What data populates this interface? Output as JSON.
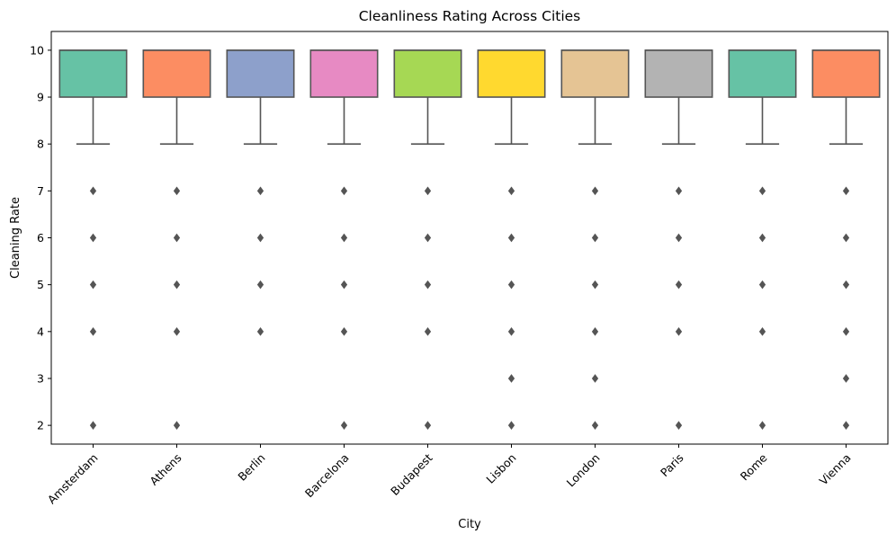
{
  "chart_data": {
    "type": "box",
    "title": "Cleanliness Rating Across Cities",
    "xlabel": "City",
    "ylabel": "Cleaning Rate",
    "ylim": [
      1.6,
      10.4
    ],
    "yticks": [
      2,
      3,
      4,
      5,
      6,
      7,
      8,
      9,
      10
    ],
    "grid": false,
    "categories": [
      "Amsterdam",
      "Athens",
      "Berlin",
      "Barcelona",
      "Budapest",
      "Lisbon",
      "London",
      "Paris",
      "Rome",
      "Vienna"
    ],
    "colors": [
      "#66c2a5",
      "#fc8d62",
      "#8da0cb",
      "#e78ac3",
      "#a6d854",
      "#ffd92f",
      "#e5c494",
      "#b3b3b3",
      "#66c2a5",
      "#fc8d62"
    ],
    "boxes": [
      {
        "city": "Amsterdam",
        "whisker_low": 8,
        "q1": 9,
        "median": 10,
        "q3": 10,
        "whisker_high": 10,
        "outliers": [
          7,
          6,
          5,
          4,
          2
        ]
      },
      {
        "city": "Athens",
        "whisker_low": 8,
        "q1": 9,
        "median": 10,
        "q3": 10,
        "whisker_high": 10,
        "outliers": [
          7,
          6,
          5,
          4,
          2
        ]
      },
      {
        "city": "Berlin",
        "whisker_low": 8,
        "q1": 9,
        "median": 10,
        "q3": 10,
        "whisker_high": 10,
        "outliers": [
          7,
          6,
          5,
          4
        ]
      },
      {
        "city": "Barcelona",
        "whisker_low": 8,
        "q1": 9,
        "median": 10,
        "q3": 10,
        "whisker_high": 10,
        "outliers": [
          7,
          6,
          5,
          4,
          2
        ]
      },
      {
        "city": "Budapest",
        "whisker_low": 8,
        "q1": 9,
        "median": 10,
        "q3": 10,
        "whisker_high": 10,
        "outliers": [
          7,
          6,
          5,
          4,
          2
        ]
      },
      {
        "city": "Lisbon",
        "whisker_low": 8,
        "q1": 9,
        "median": 10,
        "q3": 10,
        "whisker_high": 10,
        "outliers": [
          7,
          6,
          5,
          4,
          3,
          2
        ]
      },
      {
        "city": "London",
        "whisker_low": 8,
        "q1": 9,
        "median": 10,
        "q3": 10,
        "whisker_high": 10,
        "outliers": [
          7,
          6,
          5,
          4,
          3,
          2
        ]
      },
      {
        "city": "Paris",
        "whisker_low": 8,
        "q1": 9,
        "median": 10,
        "q3": 10,
        "whisker_high": 10,
        "outliers": [
          7,
          6,
          5,
          4,
          2
        ]
      },
      {
        "city": "Rome",
        "whisker_low": 8,
        "q1": 9,
        "median": 10,
        "q3": 10,
        "whisker_high": 10,
        "outliers": [
          7,
          6,
          5,
          4,
          2
        ]
      },
      {
        "city": "Vienna",
        "whisker_low": 8,
        "q1": 9,
        "median": 10,
        "q3": 10,
        "whisker_high": 10,
        "outliers": [
          7,
          6,
          5,
          4,
          3,
          2
        ]
      }
    ]
  }
}
